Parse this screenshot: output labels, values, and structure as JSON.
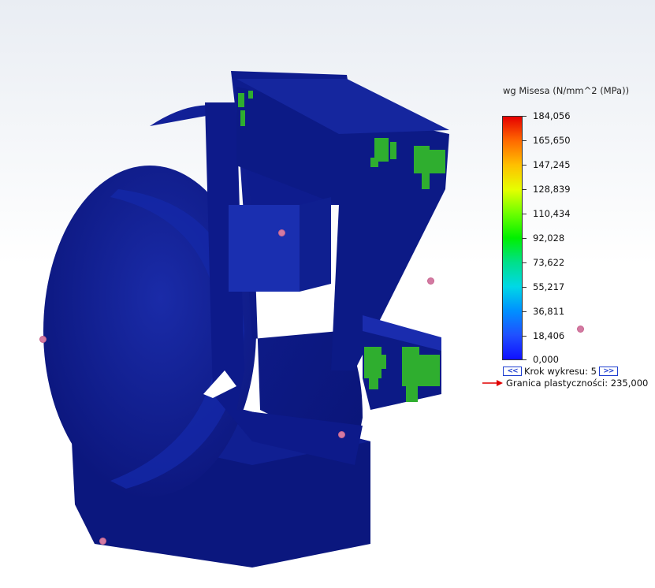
{
  "legend": {
    "title": "wg Misesa (N/mm^2 (MPa))",
    "tick_labels": [
      "184,056",
      "165,650",
      "147,245",
      "128,839",
      "110,434",
      "92,028",
      "73,622",
      "55,217",
      "36,811",
      "18,406",
      "0,000"
    ],
    "step_label": "Krok wykresu: 5",
    "step_prev_icon": "double-chevron-left-icon",
    "step_next_icon": "double-chevron-right-icon",
    "yield_label": "Granica plastyczności: 235,000",
    "yield_arrow_color": "#e00000",
    "colormap_top": "#e60000",
    "colormap_bottom": "#1010ff"
  },
  "model": {
    "base_color": "#0d1a8a",
    "stress_hotspot_color": "#2fae2f",
    "probe_point_color": "#d37aa2"
  }
}
